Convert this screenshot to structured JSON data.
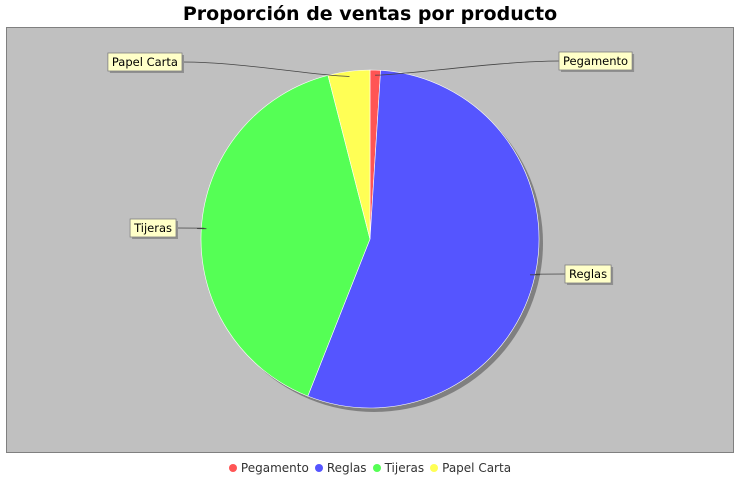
{
  "chart_data": {
    "type": "pie",
    "title": "Proporción de ventas por producto",
    "slices": [
      {
        "label": "Pegamento",
        "value": 1,
        "color": "#ff5555"
      },
      {
        "label": "Reglas",
        "value": 55,
        "color": "#5555ff"
      },
      {
        "label": "Tijeras",
        "value": 40,
        "color": "#55ff55"
      },
      {
        "label": "Papel Carta",
        "value": 4,
        "color": "#ffff55"
      }
    ],
    "legend_position": "bottom",
    "plot_background": "#c0c0c0"
  }
}
